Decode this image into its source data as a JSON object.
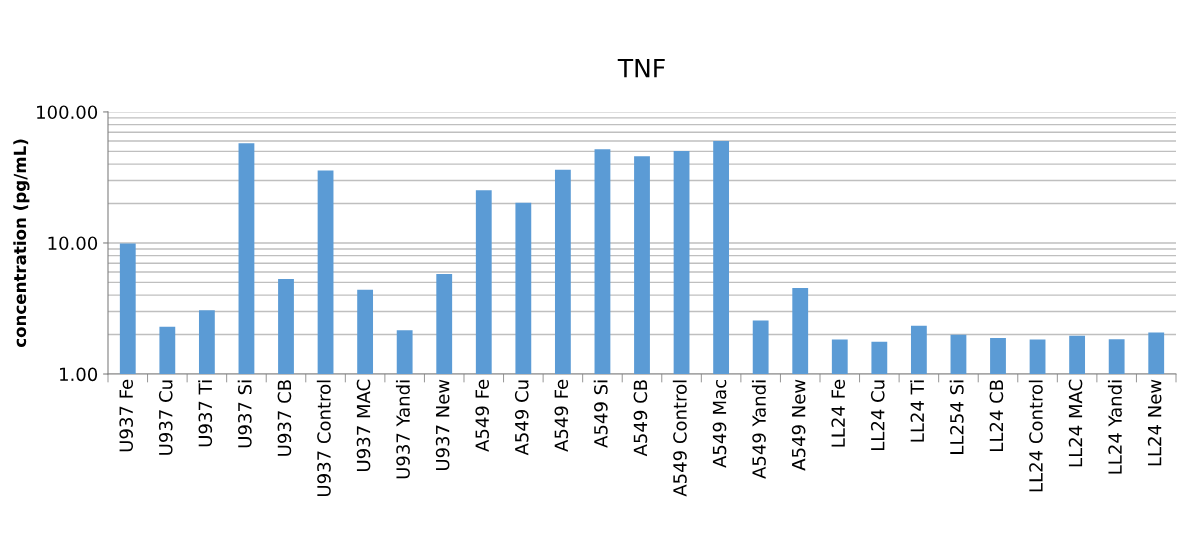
{
  "chart_data": {
    "type": "bar",
    "title": "TNF",
    "ylabel": "concentration (pg/mL)",
    "categories": [
      "U937 Fe",
      "U937 Cu",
      "U937 Ti",
      "U937 Si",
      "U937 CB",
      "U937 Control",
      "U937 MAC",
      "U937 Yandi",
      "U937 New",
      "A549 Fe",
      "A549 Cu",
      "A549 Fe",
      "A549 Si",
      "A549 CB",
      "A549 Control",
      "A549 Mac",
      "A549 Yandi",
      "A549 New",
      "LL24 Fe",
      "LL24 Cu",
      "LL24 Ti",
      "LL254 Si",
      "LL24 CB",
      "LL24 Control",
      "LL24 MAC",
      "LL24 Yandi",
      "LL24 New"
    ],
    "values": [
      9.9,
      2.29,
      3.07,
      57.7,
      5.3,
      35.7,
      4.4,
      2.16,
      5.8,
      25.3,
      20.3,
      36.2,
      52,
      45.9,
      50.3,
      59.9,
      2.56,
      4.54,
      1.83,
      1.76,
      2.33,
      1.99,
      1.88,
      1.83,
      1.96,
      1.84,
      2.07
    ],
    "color": "#5b9bd5",
    "log": "y",
    "ylim": [
      1,
      100
    ],
    "yticks": [
      {
        "value": 1,
        "label": "1.00"
      },
      {
        "value": 10,
        "label": "10.00"
      },
      {
        "value": 100,
        "label": "100.00"
      }
    ],
    "grid": "y"
  }
}
